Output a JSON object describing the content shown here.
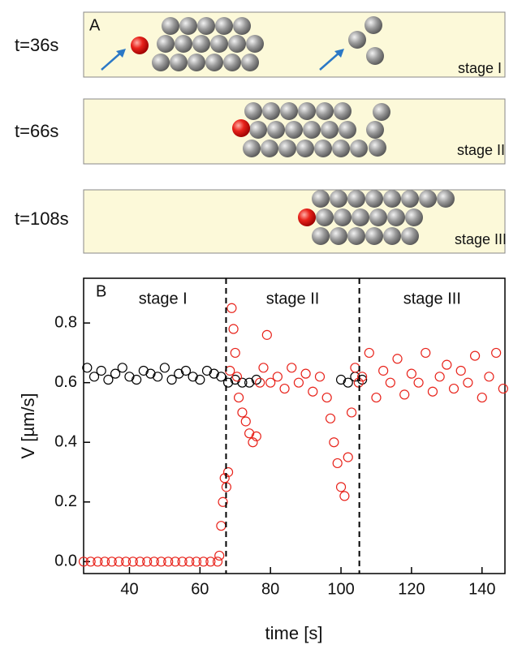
{
  "panel_a": {
    "label": "A",
    "rows": [
      {
        "time": "t=36s",
        "stage": "stage I"
      },
      {
        "time": "t=66s",
        "stage": "stage II"
      },
      {
        "time": "t=108s",
        "stage": "stage III"
      }
    ]
  },
  "chart_data": {
    "type": "scatter",
    "panel_label": "B",
    "stage_labels": [
      "stage I",
      "stage II",
      "stage III"
    ],
    "x_label": "time [s]",
    "y_label": "V [µm/s]",
    "xlim": [
      27,
      146.5
    ],
    "ylim": [
      -0.04,
      0.95
    ],
    "xticks": [
      40,
      60,
      80,
      100,
      120,
      140
    ],
    "yticks": [
      {
        "value": 0,
        "label": "0.0"
      },
      {
        "value": 0.2,
        "label": "0.2"
      },
      {
        "value": 0.4,
        "label": "0.4"
      },
      {
        "value": 0.6,
        "label": "0.6"
      },
      {
        "value": 0.8,
        "label": "0.8"
      }
    ],
    "vlines": [
      67.4,
      105.2
    ],
    "series": [
      {
        "color": "#000000",
        "x": [
          28,
          30,
          32,
          34,
          36,
          38,
          40,
          42,
          44,
          46,
          48,
          50,
          52,
          54,
          56,
          58,
          60,
          62,
          64,
          66,
          68,
          70,
          72,
          74,
          76,
          100,
          102,
          104,
          106
        ],
        "values": [
          0.65,
          0.62,
          0.64,
          0.61,
          0.63,
          0.65,
          0.62,
          0.61,
          0.64,
          0.63,
          0.62,
          0.65,
          0.61,
          0.63,
          0.64,
          0.62,
          0.61,
          0.64,
          0.63,
          0.62,
          0.6,
          0.61,
          0.6,
          0.6,
          0.61,
          0.61,
          0.6,
          0.62,
          0.61
        ]
      },
      {
        "color": "#e8231b",
        "x": [
          27,
          29,
          31,
          33,
          35,
          37,
          39,
          41,
          43,
          45,
          47,
          49,
          51,
          53,
          55,
          57,
          59,
          61,
          63,
          65,
          65.5,
          66,
          66.5,
          67,
          67.5,
          68,
          68.5,
          69,
          69.5,
          70,
          70.5,
          71,
          72,
          73,
          74,
          75,
          76,
          77,
          78,
          79,
          80,
          82,
          84,
          86,
          88,
          90,
          92,
          94,
          96,
          97,
          98,
          99,
          100,
          101,
          102,
          103,
          104,
          105,
          106,
          108,
          110,
          112,
          114,
          116,
          118,
          120,
          122,
          124,
          126,
          128,
          130,
          132,
          134,
          136,
          138,
          140,
          142,
          144,
          146
        ],
        "values": [
          0,
          0,
          0,
          0,
          0,
          0,
          0,
          0,
          0,
          0,
          0,
          0,
          0,
          0,
          0,
          0,
          0,
          0,
          0,
          0,
          0.02,
          0.12,
          0.2,
          0.28,
          0.25,
          0.3,
          0.64,
          0.85,
          0.78,
          0.7,
          0.62,
          0.55,
          0.5,
          0.47,
          0.43,
          0.4,
          0.42,
          0.6,
          0.65,
          0.76,
          0.6,
          0.62,
          0.58,
          0.65,
          0.6,
          0.63,
          0.57,
          0.62,
          0.55,
          0.48,
          0.4,
          0.33,
          0.25,
          0.22,
          0.35,
          0.5,
          0.65,
          0.6,
          0.62,
          0.7,
          0.55,
          0.64,
          0.6,
          0.68,
          0.56,
          0.63,
          0.6,
          0.7,
          0.57,
          0.62,
          0.66,
          0.58,
          0.64,
          0.6,
          0.69,
          0.55,
          0.62,
          0.7,
          0.58
        ]
      }
    ]
  }
}
